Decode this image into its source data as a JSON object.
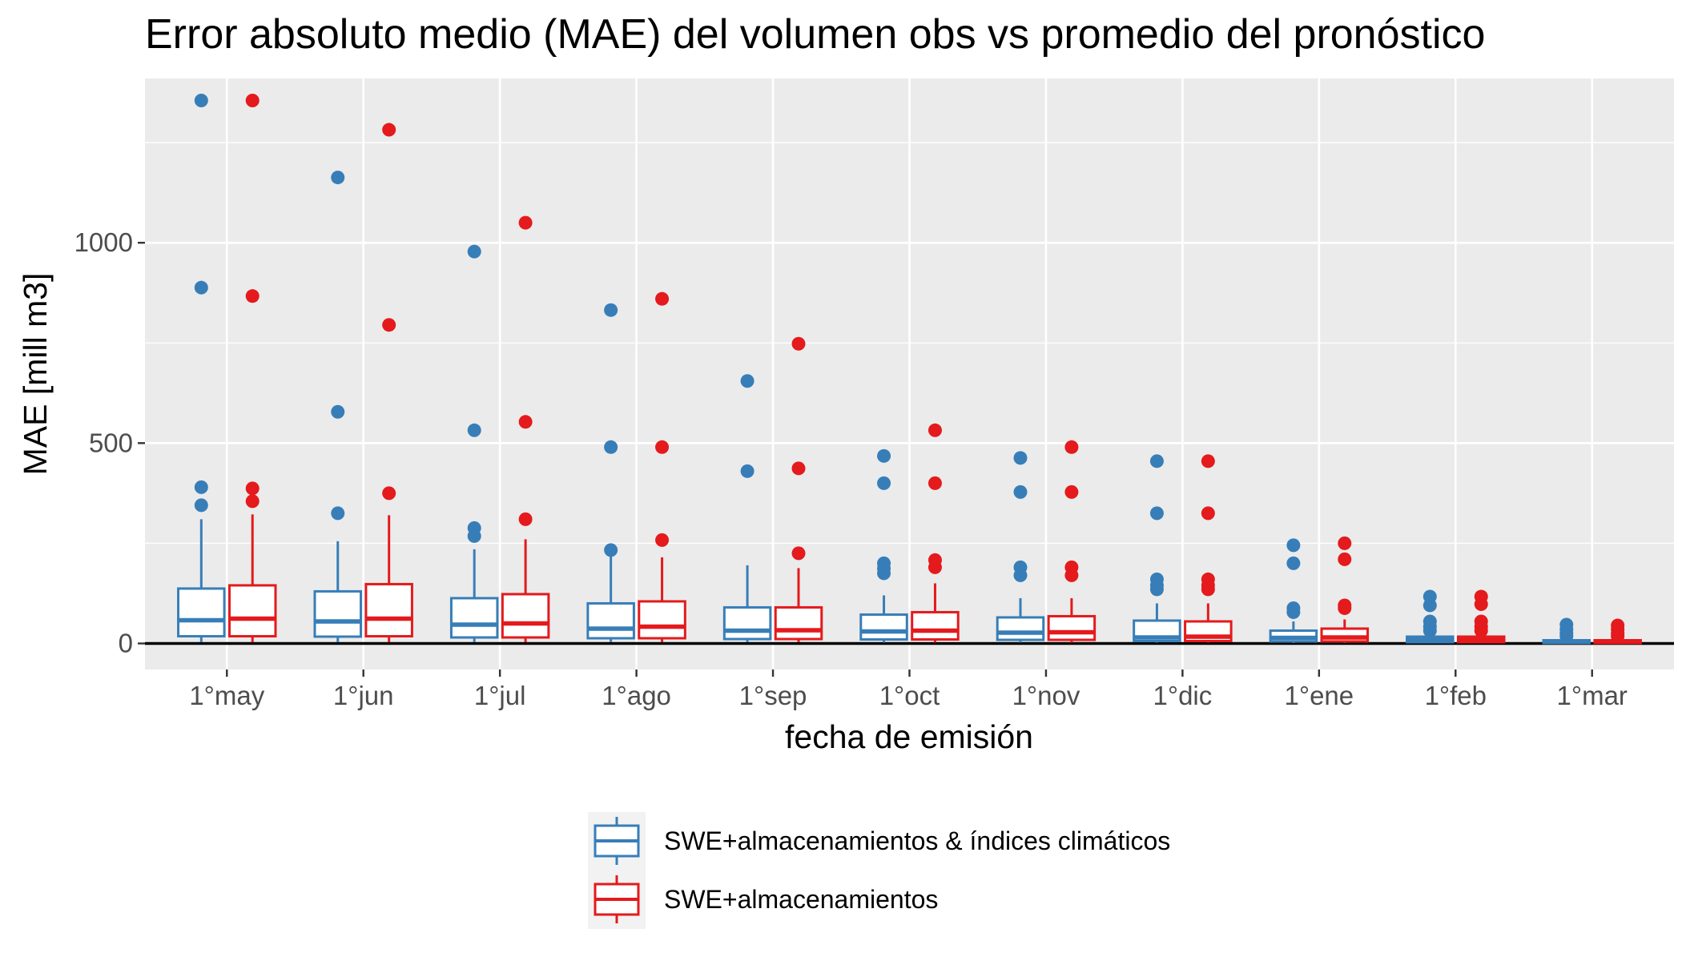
{
  "chart_data": {
    "type": "boxplot",
    "title": "Error absoluto medio (MAE) del volumen obs vs promedio del pronóstico",
    "xlabel": "fecha de emisión",
    "ylabel": "MAE [mill m3]",
    "categories": [
      "1°may",
      "1°jun",
      "1°jul",
      "1°ago",
      "1°sep",
      "1°oct",
      "1°nov",
      "1°dic",
      "1°ene",
      "1°feb",
      "1°mar"
    ],
    "ylim": [
      -65,
      1410
    ],
    "yticks": [
      0,
      500,
      1000
    ],
    "grid": true,
    "legend_position": "bottom",
    "reference_line": 0,
    "series": [
      {
        "name": "SWE+almacenamientos & índices climáticos",
        "color": "#377EB8",
        "boxes": [
          {
            "min": 3,
            "q1": 18,
            "median": 58,
            "q3": 137,
            "max": 310,
            "outliers": [
              1355,
              888,
              390,
              345
            ]
          },
          {
            "min": 3,
            "q1": 17,
            "median": 55,
            "q3": 130,
            "max": 255,
            "outliers": [
              1163,
              578,
              325
            ]
          },
          {
            "min": 3,
            "q1": 15,
            "median": 47,
            "q3": 113,
            "max": 235,
            "outliers": [
              978,
              532,
              288,
              268
            ]
          },
          {
            "min": 3,
            "q1": 13,
            "median": 37,
            "q3": 100,
            "max": 220,
            "outliers": [
              832,
              490,
              233
            ]
          },
          {
            "min": 3,
            "q1": 11,
            "median": 32,
            "q3": 90,
            "max": 195,
            "outliers": [
              655,
              430
            ]
          },
          {
            "min": 2,
            "q1": 10,
            "median": 30,
            "q3": 72,
            "max": 120,
            "outliers": [
              468,
              400,
              200,
              187,
              175
            ]
          },
          {
            "min": 2,
            "q1": 9,
            "median": 27,
            "q3": 65,
            "max": 113,
            "outliers": [
              463,
              378,
              190,
              170
            ]
          },
          {
            "min": 2,
            "q1": 6,
            "median": 15,
            "q3": 57,
            "max": 100,
            "outliers": [
              455,
              325,
              160,
              145,
              135
            ]
          },
          {
            "min": 1,
            "q1": 5,
            "median": 14,
            "q3": 32,
            "max": 55,
            "outliers": [
              245,
              200,
              88,
              78
            ]
          },
          {
            "min": 1,
            "q1": 3,
            "median": 9,
            "q3": 17,
            "max": 30,
            "outliers": [
              117,
              95,
              55,
              42,
              32
            ]
          },
          {
            "min": 0,
            "q1": 1,
            "median": 4,
            "q3": 8,
            "max": 14,
            "outliers": [
              47,
              35,
              25,
              18
            ]
          }
        ]
      },
      {
        "name": "SWE+almacenamientos",
        "color": "#E41A1C",
        "boxes": [
          {
            "min": 3,
            "q1": 18,
            "median": 62,
            "q3": 145,
            "max": 322,
            "outliers": [
              1355,
              867,
              387,
              355
            ]
          },
          {
            "min": 3,
            "q1": 18,
            "median": 62,
            "q3": 148,
            "max": 320,
            "outliers": [
              1282,
              795,
              375
            ]
          },
          {
            "min": 3,
            "q1": 15,
            "median": 50,
            "q3": 123,
            "max": 260,
            "outliers": [
              1050,
              553,
              310
            ]
          },
          {
            "min": 3,
            "q1": 13,
            "median": 42,
            "q3": 105,
            "max": 215,
            "outliers": [
              860,
              490,
              258
            ]
          },
          {
            "min": 3,
            "q1": 11,
            "median": 33,
            "q3": 90,
            "max": 188,
            "outliers": [
              748,
              437,
              225
            ]
          },
          {
            "min": 2,
            "q1": 10,
            "median": 32,
            "q3": 78,
            "max": 150,
            "outliers": [
              532,
              400,
              208,
              190
            ]
          },
          {
            "min": 2,
            "q1": 9,
            "median": 28,
            "q3": 68,
            "max": 113,
            "outliers": [
              490,
              378,
              190,
              170
            ]
          },
          {
            "min": 2,
            "q1": 6,
            "median": 17,
            "q3": 55,
            "max": 100,
            "outliers": [
              455,
              325,
              160,
              145,
              135
            ]
          },
          {
            "min": 1,
            "q1": 5,
            "median": 15,
            "q3": 37,
            "max": 60,
            "outliers": [
              250,
              210,
              95,
              88
            ]
          },
          {
            "min": 1,
            "q1": 3,
            "median": 9,
            "q3": 17,
            "max": 30,
            "outliers": [
              117,
              98,
              55,
              42,
              32
            ]
          },
          {
            "min": 0,
            "q1": 1,
            "median": 4,
            "q3": 8,
            "max": 14,
            "outliers": [
              45,
              35,
              25,
              18
            ]
          }
        ]
      }
    ]
  }
}
